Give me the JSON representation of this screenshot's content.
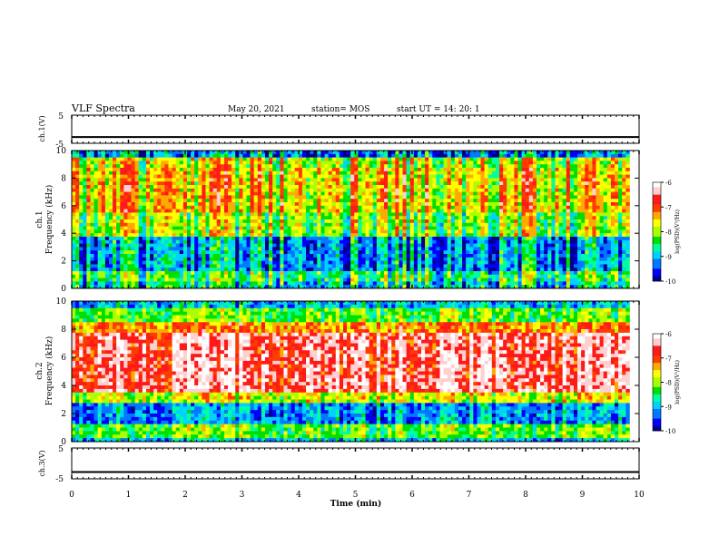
{
  "header": {
    "title": "VLF Spectra",
    "date": "May 20, 2021",
    "station": "station= MOS",
    "start": "start  UT =   14: 20: 1"
  },
  "colors": {
    "scale": [
      "#00008b",
      "#0000ff",
      "#0078ff",
      "#00d2ff",
      "#00ff9c",
      "#00e000",
      "#aaff00",
      "#ffff00",
      "#ffaa00",
      "#ff3c00",
      "#ff1a1a",
      "#ffd0d0",
      "#ffffff"
    ],
    "trace": "#000000"
  },
  "chart_data": [
    {
      "type": "line",
      "ylabel": "ch.1(V)",
      "ylim": [
        -5,
        5
      ],
      "yticks": [
        "5",
        "-5"
      ],
      "series": [
        {
          "values_constant": -2.8
        }
      ]
    },
    {
      "type": "heatmap",
      "ylabel_top": "ch.1",
      "ylabel_bottom": "Frequency (kHz)",
      "xlim": [
        0,
        9.83
      ],
      "ylim": [
        0,
        10
      ],
      "yticks": [
        "0",
        "2",
        "4",
        "6",
        "8",
        "10"
      ],
      "colorbar": {
        "label": "log(PSD)(V²/Hz)",
        "ticks": [
          "-6",
          "-7",
          "-8",
          "-9",
          "-10"
        ],
        "range": [
          -10,
          -6
        ]
      }
    },
    {
      "type": "heatmap",
      "ylabel_top": "ch.2",
      "ylabel_bottom": "Frequency (kHz)",
      "xlim": [
        0,
        9.83
      ],
      "ylim": [
        0,
        10
      ],
      "yticks": [
        "0",
        "2",
        "4",
        "6",
        "8",
        "10"
      ],
      "colorbar": {
        "label": "log(PSD)(V²/Hz)",
        "ticks": [
          "-6",
          "-7",
          "-8",
          "-9",
          "-10"
        ],
        "range": [
          -10,
          -6
        ]
      }
    },
    {
      "type": "line",
      "ylabel": "ch.3(V)",
      "ylim": [
        -5,
        5
      ],
      "yticks": [
        "5",
        "-5"
      ],
      "xlabel": "Time (min)",
      "xticks": [
        "0",
        "1",
        "2",
        "3",
        "4",
        "5",
        "6",
        "7",
        "8",
        "9",
        "10"
      ],
      "xlim": [
        0,
        10
      ],
      "series": [
        {
          "values_constant": -2.8
        }
      ]
    }
  ]
}
